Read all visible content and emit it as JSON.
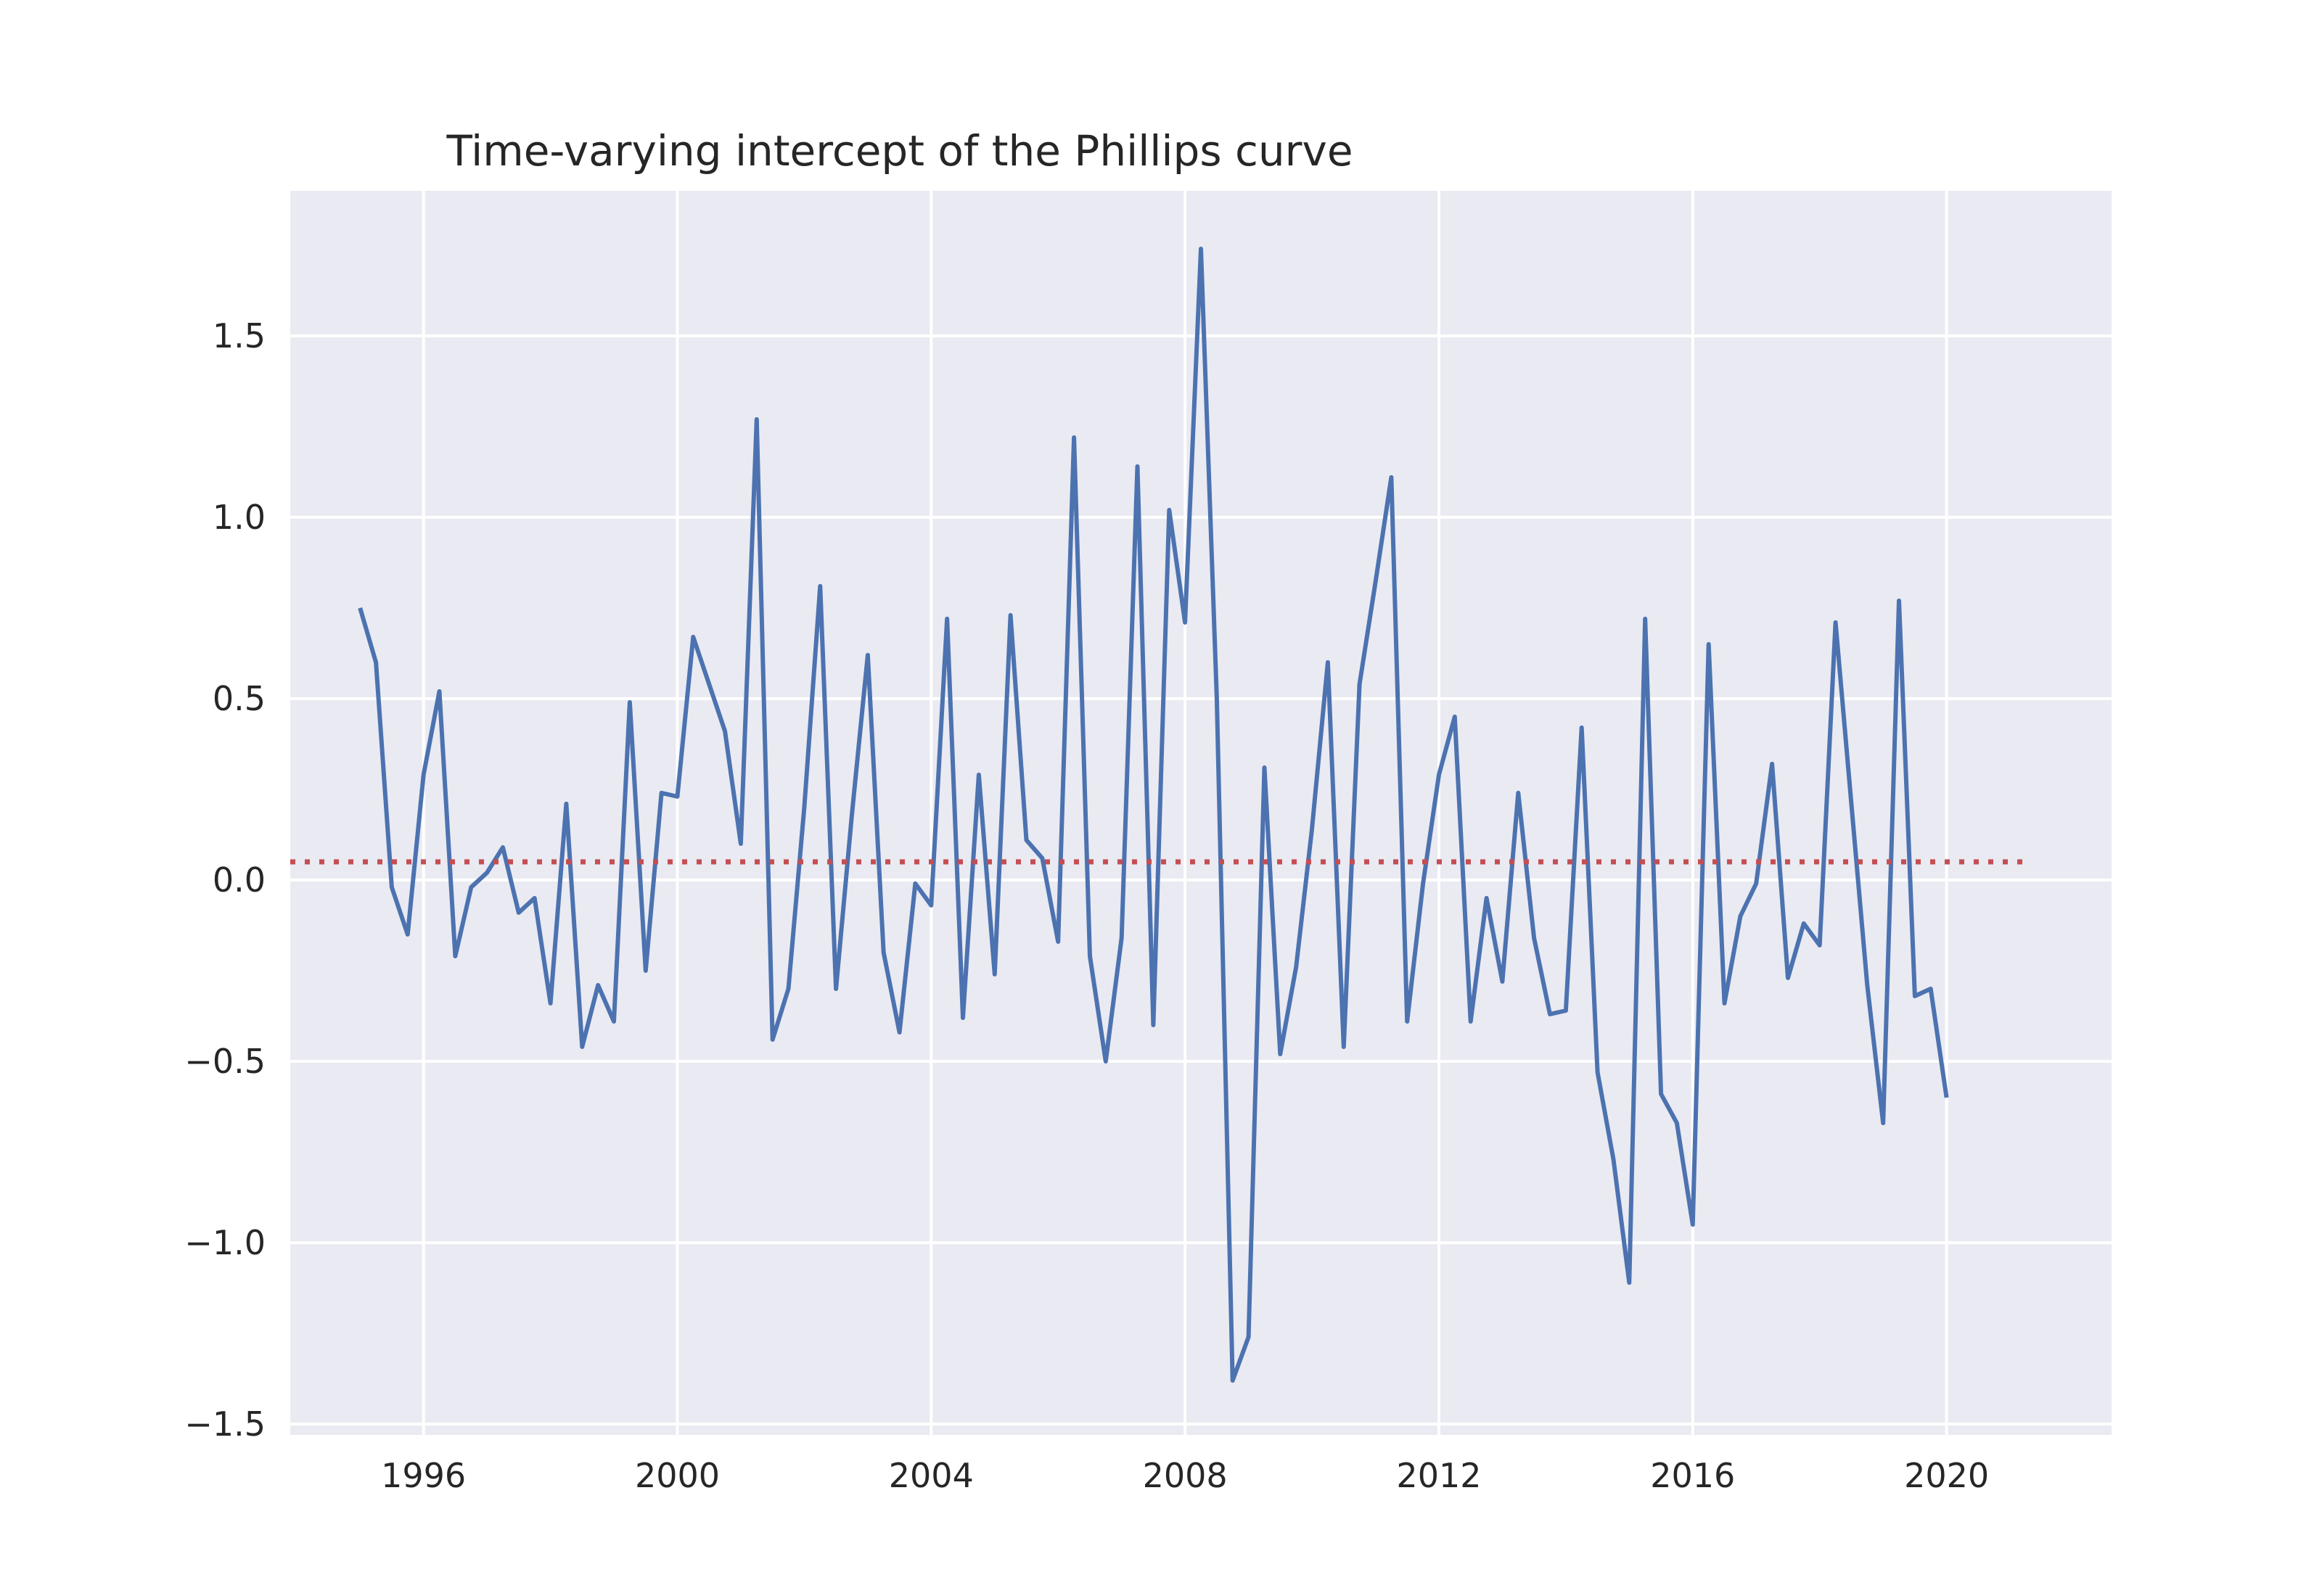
{
  "chart_data": {
    "type": "line",
    "title": "Time-varying intercept of the Phillips curve",
    "xlabel": "",
    "ylabel": "",
    "xlim": [
      1993.9,
      2022.6
    ],
    "ylim": [
      -1.53,
      1.9
    ],
    "x_ticks": [
      1996,
      2000,
      2004,
      2008,
      2012,
      2016,
      2020
    ],
    "x_tick_labels": [
      "1996",
      "2000",
      "2004",
      "2008",
      "2012",
      "2016",
      "2020"
    ],
    "y_ticks": [
      -1.5,
      -1.0,
      -0.5,
      0.0,
      0.5,
      1.0,
      1.5
    ],
    "y_tick_labels": [
      "−1.5",
      "−1.0",
      "−0.5",
      "0.0",
      "0.5",
      "1.0",
      "1.5"
    ],
    "grid": true,
    "legend": "none",
    "background_color": "#EAEAF2",
    "grid_color": "#FFFFFF",
    "series": [
      {
        "color": "#4C72B0",
        "style": "solid",
        "x": [
          1995.0,
          1995.25,
          1995.5,
          1995.75,
          1996.0,
          1996.25,
          1996.5,
          1996.75,
          1997.0,
          1997.25,
          1997.5,
          1997.75,
          1998.0,
          1998.25,
          1998.5,
          1998.75,
          1999.0,
          1999.25,
          1999.5,
          1999.75,
          2000.0,
          2000.25,
          2000.5,
          2000.75,
          2001.0,
          2001.25,
          2001.5,
          2001.75,
          2002.0,
          2002.25,
          2002.5,
          2002.75,
          2003.0,
          2003.25,
          2003.5,
          2003.75,
          2004.0,
          2004.25,
          2004.5,
          2004.75,
          2005.0,
          2005.25,
          2005.5,
          2005.75,
          2006.0,
          2006.25,
          2006.5,
          2006.75,
          2007.0,
          2007.25,
          2007.5,
          2007.75,
          2008.0,
          2008.25,
          2008.5,
          2008.75,
          2009.0,
          2009.25,
          2009.5,
          2009.75,
          2010.0,
          2010.25,
          2010.5,
          2010.75,
          2011.0,
          2011.25,
          2011.5,
          2011.75,
          2012.0,
          2012.25,
          2012.5,
          2012.75,
          2013.0,
          2013.25,
          2013.5,
          2013.75,
          2014.0,
          2014.25,
          2014.5,
          2014.75,
          2015.0,
          2015.25,
          2015.5,
          2015.75,
          2016.0,
          2016.25,
          2016.5,
          2016.75,
          2017.0,
          2017.25,
          2017.5,
          2017.75,
          2018.0,
          2018.25,
          2018.5,
          2018.75,
          2019.0,
          2019.25,
          2019.5,
          2019.75,
          2020.0
        ],
        "y": [
          0.75,
          0.6,
          -0.02,
          -0.15,
          0.29,
          0.52,
          -0.21,
          -0.02,
          0.02,
          0.09,
          -0.09,
          -0.05,
          -0.34,
          0.21,
          -0.46,
          -0.29,
          -0.39,
          0.49,
          -0.25,
          0.24,
          0.23,
          0.67,
          0.54,
          0.41,
          0.1,
          1.27,
          -0.44,
          -0.3,
          0.2,
          0.81,
          -0.3,
          0.18,
          0.62,
          -0.2,
          -0.42,
          -0.01,
          -0.07,
          0.72,
          -0.38,
          0.29,
          -0.26,
          0.73,
          0.11,
          0.06,
          -0.17,
          1.22,
          -0.21,
          -0.5,
          -0.16,
          1.14,
          -0.4,
          1.02,
          0.71,
          1.74,
          0.5,
          -1.38,
          -1.26,
          0.31,
          -0.48,
          -0.24,
          0.14,
          0.6,
          -0.46,
          0.54,
          0.82,
          1.11,
          -0.39,
          -0.01,
          0.29,
          0.45,
          -0.39,
          -0.05,
          -0.28,
          0.24,
          -0.16,
          -0.37,
          -0.36,
          0.42,
          -0.53,
          -0.77,
          -1.11,
          0.72,
          -0.59,
          -0.67,
          -0.95,
          0.65,
          -0.34,
          -0.1,
          -0.01,
          0.32,
          -0.27,
          -0.12,
          -0.18,
          0.71,
          0.21,
          -0.29,
          -0.67,
          0.77,
          -0.32,
          -0.3,
          -0.6
        ]
      },
      {
        "color": "#C44E52",
        "style": "dotted",
        "x": [
          1993.9,
          2021.3
        ],
        "y": [
          0.05,
          0.05
        ]
      }
    ]
  }
}
